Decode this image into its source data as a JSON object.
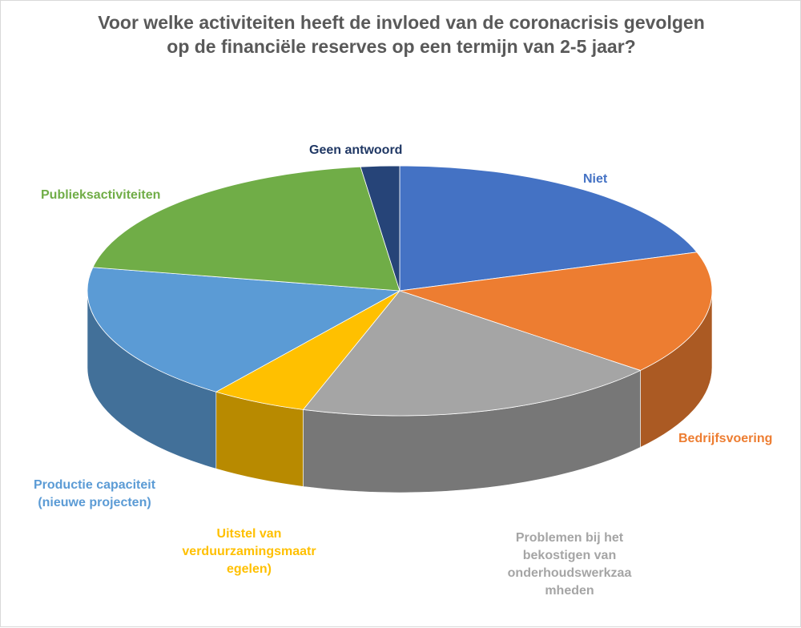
{
  "chart_data": {
    "type": "pie",
    "title_lines": [
      "Voor welke activiteiten heeft de invloed van de coronacrisis gevolgen",
      "op de financiële reserves op een termijn van 2-5 jaar?"
    ],
    "slices": [
      {
        "name": "Niet",
        "label_lines": [
          "Niet"
        ],
        "value": 20,
        "color": "#4472C4",
        "label_color": "#4472C4"
      },
      {
        "name": "Bedrijfsvoering",
        "label_lines": [
          "Bedrijfsvoering"
        ],
        "value": 16,
        "color": "#ED7D31",
        "label_color": "#ED7D31"
      },
      {
        "name": "Problemen bij het bekostigen van onderhoudswerkzaamheden",
        "label_lines": [
          "Problemen bij het",
          "bekostigen van",
          "onderhoudswerkzaa",
          "mheden"
        ],
        "value": 19,
        "color": "#A5A5A5",
        "label_color": "#A5A5A5"
      },
      {
        "name": "Uitstel van verduurzamingsmaatregelen)",
        "label_lines": [
          "Uitstel van",
          "verduurzamingsmaatr",
          "egelen)"
        ],
        "value": 5,
        "color": "#FFC000",
        "label_color": "#FFC000"
      },
      {
        "name": "Productie capaciteit (nieuwe projecten)",
        "label_lines": [
          "Productie capaciteit",
          "(nieuwe projecten)"
        ],
        "value": 18,
        "color": "#5B9BD5",
        "label_color": "#5B9BD5"
      },
      {
        "name": "Publieksactiviteiten",
        "label_lines": [
          "Publieksactiviteiten"
        ],
        "value": 20,
        "color": "#70AD47",
        "label_color": "#70AD47"
      },
      {
        "name": "Geen antwoord",
        "label_lines": [
          "Geen antwoord"
        ],
        "value": 2,
        "color": "#264478",
        "label_color": "#203864"
      }
    ],
    "style": "3d-pie",
    "legend": "none"
  }
}
